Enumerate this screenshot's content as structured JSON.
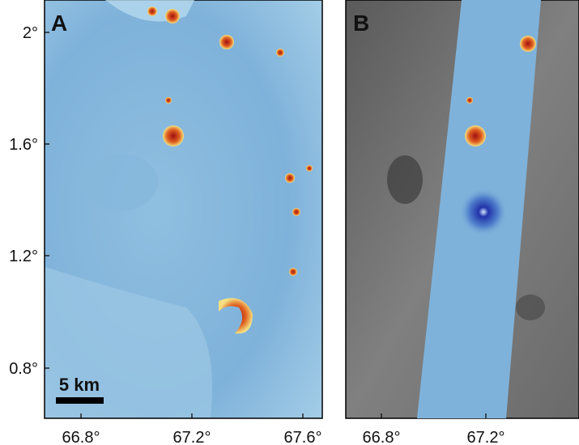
{
  "panels": [
    {
      "label": "A",
      "x_ticks": [
        "66.8°",
        "67.2°",
        "67.6°"
      ],
      "y_ticks": [
        "2°",
        "1.6°",
        "1.2°",
        "0.8°"
      ],
      "scale_bar": "5 km"
    },
    {
      "label": "B",
      "x_ticks": [
        "66.8°",
        "67.2°"
      ]
    }
  ]
}
